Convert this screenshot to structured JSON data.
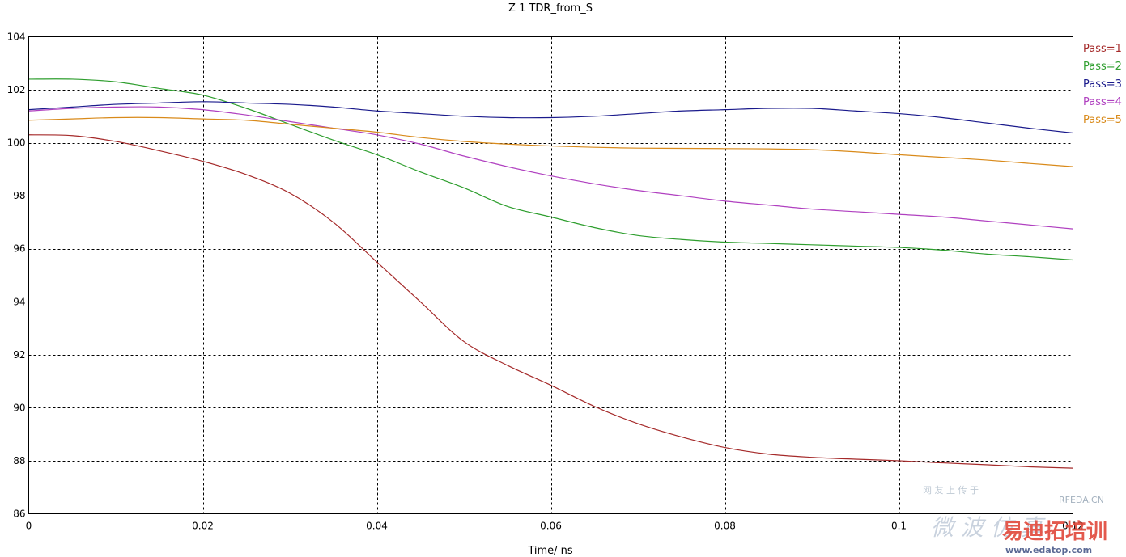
{
  "chart_data": {
    "type": "line",
    "title": "Z 1 TDR_from_S",
    "xlabel": "Time/ ns",
    "ylabel": "",
    "xlim": [
      0,
      0.12
    ],
    "ylim": [
      86,
      104
    ],
    "xticks": [
      0,
      0.02,
      0.04,
      0.06,
      0.08,
      0.1,
      0.12
    ],
    "xtick_labels": [
      "0",
      "0.02",
      "0.04",
      "0.06",
      "0.08",
      "0.1",
      "0.12"
    ],
    "yticks": [
      86,
      88,
      90,
      92,
      94,
      96,
      98,
      100,
      102,
      104
    ],
    "ytick_labels": [
      "86",
      "88",
      "90",
      "92",
      "94",
      "96",
      "98",
      "100",
      "102",
      "104"
    ],
    "grid": true,
    "legend_position": "right",
    "series": [
      {
        "name": "Pass=1",
        "color": "#a52a2a",
        "x": [
          0,
          0.005,
          0.01,
          0.015,
          0.02,
          0.025,
          0.03,
          0.035,
          0.04,
          0.045,
          0.05,
          0.055,
          0.06,
          0.065,
          0.07,
          0.075,
          0.08,
          0.085,
          0.09,
          0.095,
          0.1,
          0.105,
          0.11,
          0.115,
          0.12
        ],
        "y": [
          100.3,
          100.27,
          100.05,
          99.7,
          99.3,
          98.8,
          98.1,
          97.0,
          95.5,
          94.0,
          92.5,
          91.6,
          90.85,
          90.05,
          89.4,
          88.9,
          88.5,
          88.25,
          88.13,
          88.06,
          88.0,
          87.92,
          87.85,
          87.77,
          87.72
        ]
      },
      {
        "name": "Pass=2",
        "color": "#2e9e2e",
        "x": [
          0,
          0.005,
          0.01,
          0.015,
          0.02,
          0.025,
          0.03,
          0.035,
          0.04,
          0.045,
          0.05,
          0.055,
          0.06,
          0.065,
          0.07,
          0.075,
          0.08,
          0.085,
          0.09,
          0.095,
          0.1,
          0.105,
          0.11,
          0.115,
          0.12
        ],
        "y": [
          102.4,
          102.4,
          102.3,
          102.05,
          101.8,
          101.3,
          100.7,
          100.1,
          99.55,
          98.9,
          98.3,
          97.6,
          97.2,
          96.8,
          96.5,
          96.35,
          96.25,
          96.2,
          96.15,
          96.1,
          96.05,
          95.95,
          95.8,
          95.7,
          95.58
        ]
      },
      {
        "name": "Pass=3",
        "color": "#1a1a8c",
        "x": [
          0,
          0.005,
          0.01,
          0.015,
          0.02,
          0.025,
          0.03,
          0.035,
          0.04,
          0.045,
          0.05,
          0.055,
          0.06,
          0.065,
          0.07,
          0.075,
          0.08,
          0.085,
          0.09,
          0.095,
          0.1,
          0.105,
          0.11,
          0.115,
          0.12
        ],
        "y": [
          101.25,
          101.35,
          101.45,
          101.5,
          101.55,
          101.5,
          101.45,
          101.35,
          101.2,
          101.1,
          101.0,
          100.95,
          100.95,
          101.0,
          101.1,
          101.2,
          101.25,
          101.3,
          101.3,
          101.2,
          101.1,
          100.95,
          100.75,
          100.55,
          100.37
        ]
      },
      {
        "name": "Pass=4",
        "color": "#b040c0",
        "x": [
          0,
          0.005,
          0.01,
          0.015,
          0.02,
          0.025,
          0.03,
          0.035,
          0.04,
          0.045,
          0.05,
          0.055,
          0.06,
          0.065,
          0.07,
          0.075,
          0.08,
          0.085,
          0.09,
          0.095,
          0.1,
          0.105,
          0.11,
          0.115,
          0.12
        ],
        "y": [
          101.2,
          101.3,
          101.35,
          101.35,
          101.25,
          101.05,
          100.8,
          100.55,
          100.3,
          99.95,
          99.5,
          99.1,
          98.75,
          98.45,
          98.2,
          98.0,
          97.8,
          97.65,
          97.5,
          97.4,
          97.3,
          97.2,
          97.05,
          96.9,
          96.75
        ]
      },
      {
        "name": "Pass=5",
        "color": "#d98a1a",
        "x": [
          0,
          0.005,
          0.01,
          0.015,
          0.02,
          0.025,
          0.03,
          0.035,
          0.04,
          0.045,
          0.05,
          0.055,
          0.06,
          0.065,
          0.07,
          0.075,
          0.08,
          0.085,
          0.09,
          0.095,
          0.1,
          0.105,
          0.11,
          0.115,
          0.12
        ],
        "y": [
          100.85,
          100.9,
          100.95,
          100.95,
          100.9,
          100.85,
          100.7,
          100.55,
          100.4,
          100.2,
          100.05,
          99.95,
          99.88,
          99.83,
          99.8,
          99.79,
          99.78,
          99.77,
          99.74,
          99.66,
          99.55,
          99.45,
          99.35,
          99.22,
          99.1
        ]
      }
    ]
  },
  "watermark": {
    "cjk_text": "微 波 仿 真",
    "brand_text": "易迪拓培训",
    "site_text": "RFEDA.CN",
    "url_text": "www.edatop.com",
    "small_text": "网 友 上 传 于"
  }
}
